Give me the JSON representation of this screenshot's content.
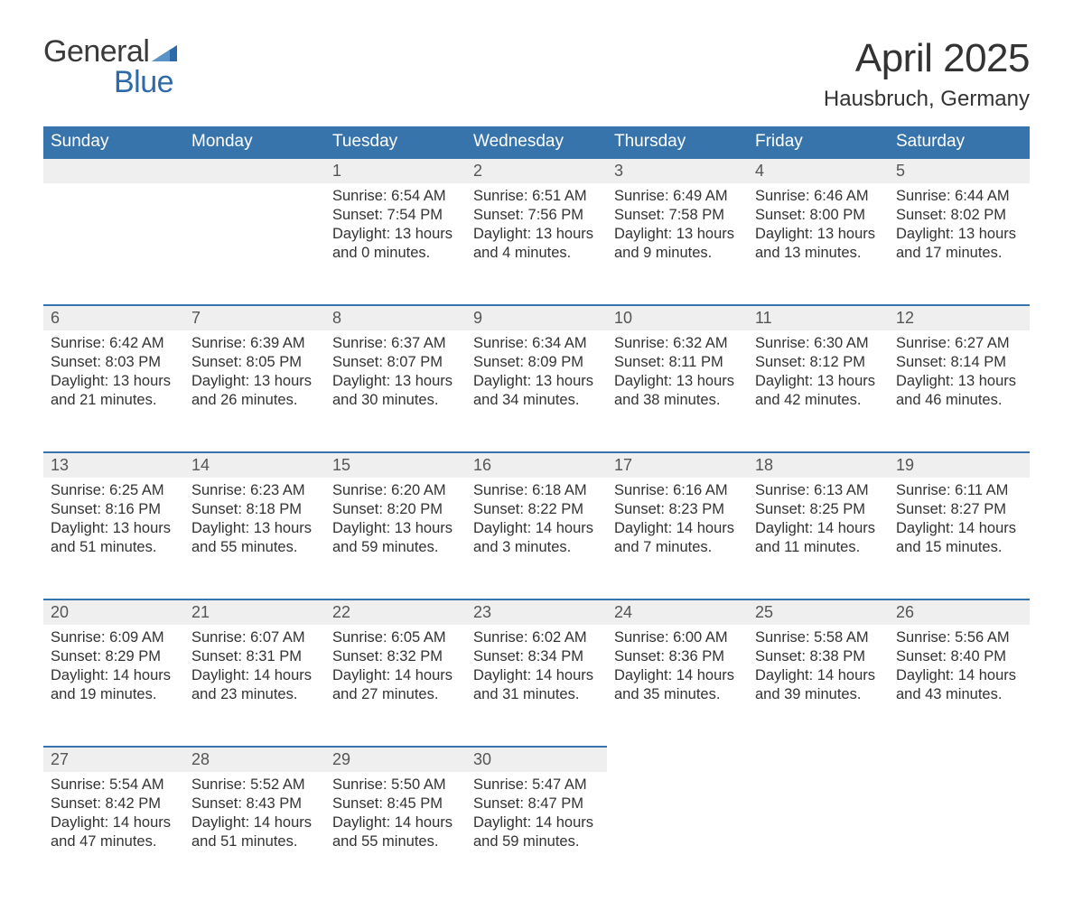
{
  "logo": {
    "word1": "General",
    "word2": "Blue"
  },
  "title": "April 2025",
  "subtitle": "Hausbruch, Germany",
  "colors": {
    "header_bg": "#3874ac",
    "header_fg": "#ffffff",
    "daynum_bg": "#efefef",
    "daynum_fg": "#555555",
    "row_border": "#3874ac",
    "logo_blue": "#2f6aa8",
    "text": "#333333"
  },
  "day_labels": [
    "Sunday",
    "Monday",
    "Tuesday",
    "Wednesday",
    "Thursday",
    "Friday",
    "Saturday"
  ],
  "weeks": [
    [
      null,
      null,
      {
        "n": "1",
        "sr": "6:54 AM",
        "ss": "7:54 PM",
        "dl1": "13 hours",
        "dl2": "and 0 minutes."
      },
      {
        "n": "2",
        "sr": "6:51 AM",
        "ss": "7:56 PM",
        "dl1": "13 hours",
        "dl2": "and 4 minutes."
      },
      {
        "n": "3",
        "sr": "6:49 AM",
        "ss": "7:58 PM",
        "dl1": "13 hours",
        "dl2": "and 9 minutes."
      },
      {
        "n": "4",
        "sr": "6:46 AM",
        "ss": "8:00 PM",
        "dl1": "13 hours",
        "dl2": "and 13 minutes."
      },
      {
        "n": "5",
        "sr": "6:44 AM",
        "ss": "8:02 PM",
        "dl1": "13 hours",
        "dl2": "and 17 minutes."
      }
    ],
    [
      {
        "n": "6",
        "sr": "6:42 AM",
        "ss": "8:03 PM",
        "dl1": "13 hours",
        "dl2": "and 21 minutes."
      },
      {
        "n": "7",
        "sr": "6:39 AM",
        "ss": "8:05 PM",
        "dl1": "13 hours",
        "dl2": "and 26 minutes."
      },
      {
        "n": "8",
        "sr": "6:37 AM",
        "ss": "8:07 PM",
        "dl1": "13 hours",
        "dl2": "and 30 minutes."
      },
      {
        "n": "9",
        "sr": "6:34 AM",
        "ss": "8:09 PM",
        "dl1": "13 hours",
        "dl2": "and 34 minutes."
      },
      {
        "n": "10",
        "sr": "6:32 AM",
        "ss": "8:11 PM",
        "dl1": "13 hours",
        "dl2": "and 38 minutes."
      },
      {
        "n": "11",
        "sr": "6:30 AM",
        "ss": "8:12 PM",
        "dl1": "13 hours",
        "dl2": "and 42 minutes."
      },
      {
        "n": "12",
        "sr": "6:27 AM",
        "ss": "8:14 PM",
        "dl1": "13 hours",
        "dl2": "and 46 minutes."
      }
    ],
    [
      {
        "n": "13",
        "sr": "6:25 AM",
        "ss": "8:16 PM",
        "dl1": "13 hours",
        "dl2": "and 51 minutes."
      },
      {
        "n": "14",
        "sr": "6:23 AM",
        "ss": "8:18 PM",
        "dl1": "13 hours",
        "dl2": "and 55 minutes."
      },
      {
        "n": "15",
        "sr": "6:20 AM",
        "ss": "8:20 PM",
        "dl1": "13 hours",
        "dl2": "and 59 minutes."
      },
      {
        "n": "16",
        "sr": "6:18 AM",
        "ss": "8:22 PM",
        "dl1": "14 hours",
        "dl2": "and 3 minutes."
      },
      {
        "n": "17",
        "sr": "6:16 AM",
        "ss": "8:23 PM",
        "dl1": "14 hours",
        "dl2": "and 7 minutes."
      },
      {
        "n": "18",
        "sr": "6:13 AM",
        "ss": "8:25 PM",
        "dl1": "14 hours",
        "dl2": "and 11 minutes."
      },
      {
        "n": "19",
        "sr": "6:11 AM",
        "ss": "8:27 PM",
        "dl1": "14 hours",
        "dl2": "and 15 minutes."
      }
    ],
    [
      {
        "n": "20",
        "sr": "6:09 AM",
        "ss": "8:29 PM",
        "dl1": "14 hours",
        "dl2": "and 19 minutes."
      },
      {
        "n": "21",
        "sr": "6:07 AM",
        "ss": "8:31 PM",
        "dl1": "14 hours",
        "dl2": "and 23 minutes."
      },
      {
        "n": "22",
        "sr": "6:05 AM",
        "ss": "8:32 PM",
        "dl1": "14 hours",
        "dl2": "and 27 minutes."
      },
      {
        "n": "23",
        "sr": "6:02 AM",
        "ss": "8:34 PM",
        "dl1": "14 hours",
        "dl2": "and 31 minutes."
      },
      {
        "n": "24",
        "sr": "6:00 AM",
        "ss": "8:36 PM",
        "dl1": "14 hours",
        "dl2": "and 35 minutes."
      },
      {
        "n": "25",
        "sr": "5:58 AM",
        "ss": "8:38 PM",
        "dl1": "14 hours",
        "dl2": "and 39 minutes."
      },
      {
        "n": "26",
        "sr": "5:56 AM",
        "ss": "8:40 PM",
        "dl1": "14 hours",
        "dl2": "and 43 minutes."
      }
    ],
    [
      {
        "n": "27",
        "sr": "5:54 AM",
        "ss": "8:42 PM",
        "dl1": "14 hours",
        "dl2": "and 47 minutes."
      },
      {
        "n": "28",
        "sr": "5:52 AM",
        "ss": "8:43 PM",
        "dl1": "14 hours",
        "dl2": "and 51 minutes."
      },
      {
        "n": "29",
        "sr": "5:50 AM",
        "ss": "8:45 PM",
        "dl1": "14 hours",
        "dl2": "and 55 minutes."
      },
      {
        "n": "30",
        "sr": "5:47 AM",
        "ss": "8:47 PM",
        "dl1": "14 hours",
        "dl2": "and 59 minutes."
      },
      null,
      null,
      null
    ]
  ],
  "labels": {
    "sunrise_prefix": "Sunrise: ",
    "sunset_prefix": "Sunset: ",
    "daylight_prefix": "Daylight: "
  }
}
